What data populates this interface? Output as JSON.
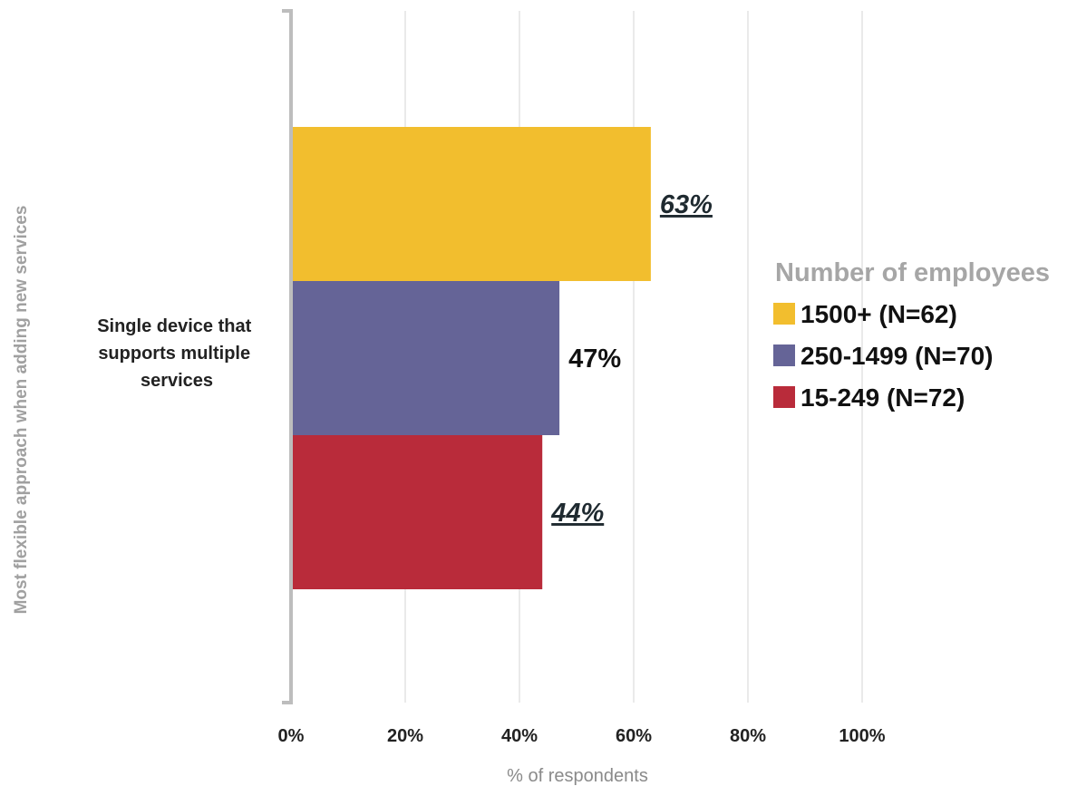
{
  "chart_data": {
    "type": "bar",
    "orientation": "horizontal",
    "categories": [
      "Single device that supports multiple services"
    ],
    "category_lines": [
      "Single device that",
      "supports multiple",
      "services"
    ],
    "series": [
      {
        "name": "1500+ (N=62)",
        "values": [
          63
        ],
        "label": "63%",
        "color": "#F2BE2E",
        "label_emphasis": true
      },
      {
        "name": "250-1499 (N=70)",
        "values": [
          47
        ],
        "label": "47%",
        "color": "#656497",
        "label_emphasis": false
      },
      {
        "name": "15-249 (N=72)",
        "values": [
          44
        ],
        "label": "44%",
        "color": "#B92B3A",
        "label_emphasis": true
      }
    ],
    "xlim": [
      0,
      100
    ],
    "xticks": [
      {
        "value": 0,
        "label": "0%"
      },
      {
        "value": 20,
        "label": "20%"
      },
      {
        "value": 40,
        "label": "40%"
      },
      {
        "value": 60,
        "label": "60%"
      },
      {
        "value": 80,
        "label": "80%"
      },
      {
        "value": 100,
        "label": "100%"
      }
    ],
    "xlabel": "% of respondents",
    "ylabel": "Most flexible approach when adding new services",
    "legend_title": "Number of employees",
    "legend_position": "right",
    "grid": true
  }
}
